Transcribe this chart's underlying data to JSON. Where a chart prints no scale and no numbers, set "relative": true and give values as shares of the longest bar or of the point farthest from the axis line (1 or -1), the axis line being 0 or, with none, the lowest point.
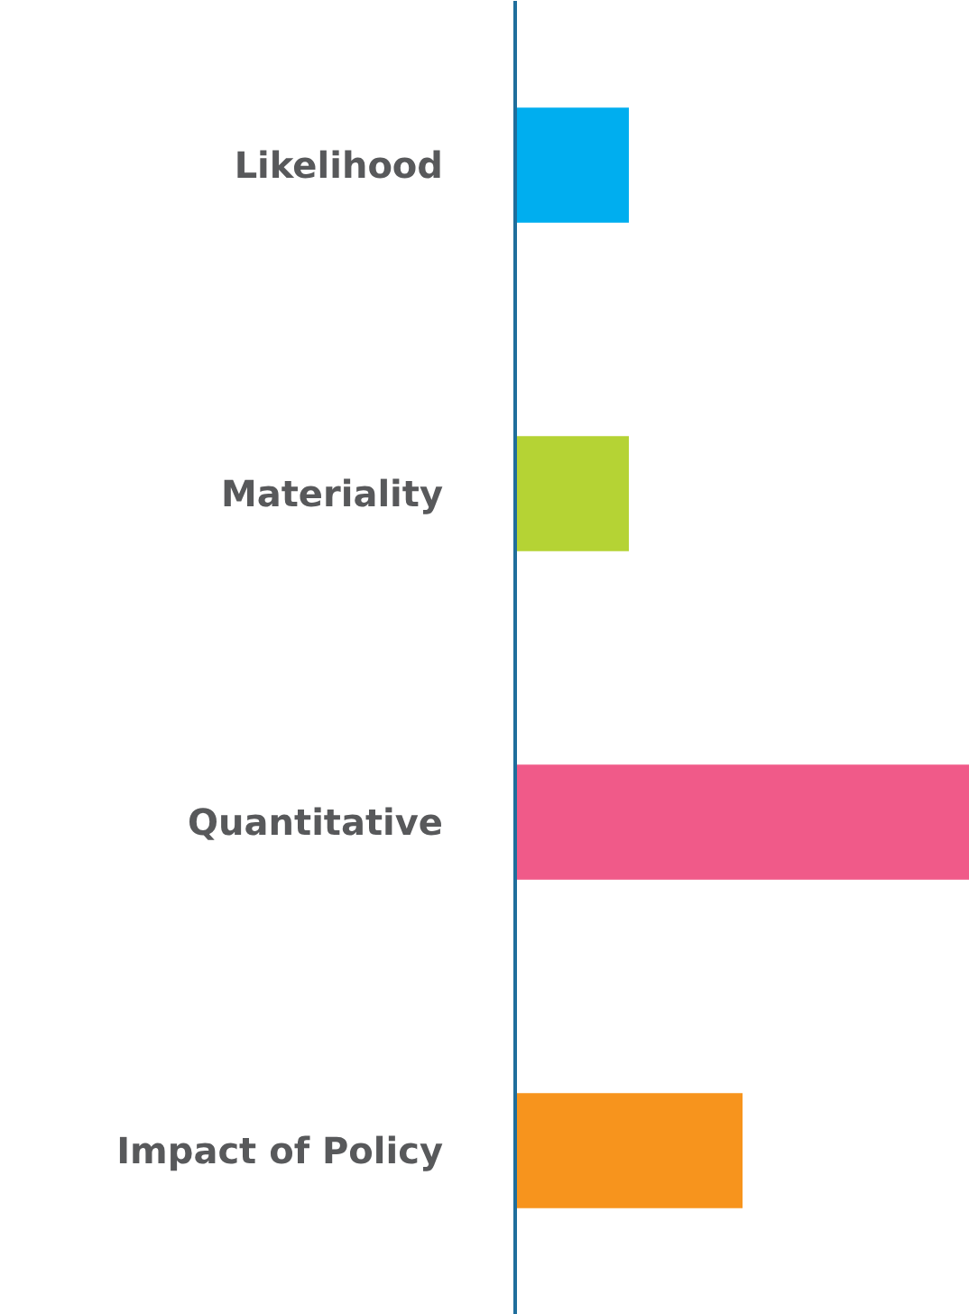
{
  "chart_data": {
    "type": "bar",
    "orientation": "horizontal",
    "relative": true,
    "categories": [
      "Likelihood",
      "Materiality",
      "Quantitative",
      "Impact of Policy"
    ],
    "values": [
      0.25,
      0.25,
      1,
      0.5
    ],
    "colors": [
      "#00aeef",
      "#b5d334",
      "#f05a89",
      "#f7941d"
    ]
  }
}
